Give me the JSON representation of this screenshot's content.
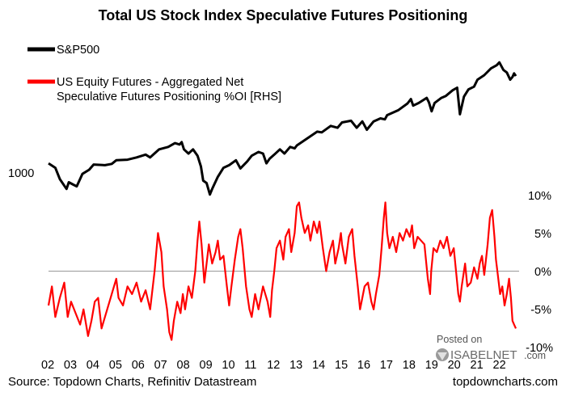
{
  "chart_data": {
    "type": "line",
    "title": "Total US Stock Index Speculative Futures Positioning",
    "x_tick_labels": [
      "02",
      "03",
      "04",
      "05",
      "06",
      "07",
      "08",
      "09",
      "10",
      "11",
      "12",
      "13",
      "14",
      "15",
      "16",
      "17",
      "18",
      "19",
      "20",
      "21",
      "22"
    ],
    "xlim": [
      2002.0,
      2022.7
    ],
    "left_axis": {
      "tick_labels": [
        "1000"
      ],
      "log_scale": true,
      "ylim": [
        650,
        5200
      ]
    },
    "right_axis": {
      "tick_labels": [
        "10%",
        "5%",
        "0%",
        "-5%",
        "-10%"
      ],
      "tick_values": [
        10,
        5,
        0,
        -5,
        -10
      ],
      "ylim": [
        -10,
        10
      ]
    },
    "zero_line": true,
    "grid": false,
    "legend_position": "top-left",
    "series": [
      {
        "name": "S&P500",
        "axis": "left",
        "color": "#000000",
        "points": [
          [
            2002.0,
            1150
          ],
          [
            2002.3,
            1080
          ],
          [
            2002.5,
            920
          ],
          [
            2002.8,
            800
          ],
          [
            2002.9,
            880
          ],
          [
            2003.1,
            850
          ],
          [
            2003.25,
            830
          ],
          [
            2003.5,
            990
          ],
          [
            2003.8,
            1050
          ],
          [
            2004.0,
            1130
          ],
          [
            2004.5,
            1120
          ],
          [
            2004.8,
            1140
          ],
          [
            2005.0,
            1200
          ],
          [
            2005.5,
            1210
          ],
          [
            2005.9,
            1250
          ],
          [
            2006.3,
            1300
          ],
          [
            2006.5,
            1250
          ],
          [
            2006.9,
            1400
          ],
          [
            2007.3,
            1450
          ],
          [
            2007.6,
            1530
          ],
          [
            2007.8,
            1500
          ],
          [
            2007.9,
            1550
          ],
          [
            2008.0,
            1400
          ],
          [
            2008.2,
            1320
          ],
          [
            2008.4,
            1400
          ],
          [
            2008.6,
            1280
          ],
          [
            2008.75,
            1100
          ],
          [
            2008.85,
            900
          ],
          [
            2009.0,
            870
          ],
          [
            2009.15,
            740
          ],
          [
            2009.25,
            800
          ],
          [
            2009.5,
            950
          ],
          [
            2009.75,
            1080
          ],
          [
            2010.0,
            1120
          ],
          [
            2010.3,
            1200
          ],
          [
            2010.5,
            1070
          ],
          [
            2010.8,
            1180
          ],
          [
            2011.0,
            1280
          ],
          [
            2011.3,
            1350
          ],
          [
            2011.5,
            1320
          ],
          [
            2011.65,
            1150
          ],
          [
            2011.8,
            1230
          ],
          [
            2012.0,
            1300
          ],
          [
            2012.25,
            1400
          ],
          [
            2012.45,
            1320
          ],
          [
            2012.7,
            1450
          ],
          [
            2012.9,
            1420
          ],
          [
            2013.0,
            1480
          ],
          [
            2013.5,
            1650
          ],
          [
            2013.9,
            1800
          ],
          [
            2014.1,
            1780
          ],
          [
            2014.5,
            1950
          ],
          [
            2014.8,
            1900
          ],
          [
            2015.0,
            2050
          ],
          [
            2015.4,
            2100
          ],
          [
            2015.65,
            1900
          ],
          [
            2015.9,
            2080
          ],
          [
            2016.1,
            1850
          ],
          [
            2016.4,
            2080
          ],
          [
            2016.7,
            2170
          ],
          [
            2016.9,
            2140
          ],
          [
            2017.0,
            2270
          ],
          [
            2017.5,
            2440
          ],
          [
            2017.9,
            2680
          ],
          [
            2018.05,
            2850
          ],
          [
            2018.15,
            2600
          ],
          [
            2018.4,
            2700
          ],
          [
            2018.75,
            2900
          ],
          [
            2018.85,
            2720
          ],
          [
            2018.97,
            2400
          ],
          [
            2019.1,
            2700
          ],
          [
            2019.4,
            2900
          ],
          [
            2019.6,
            2980
          ],
          [
            2019.9,
            3230
          ],
          [
            2020.1,
            3350
          ],
          [
            2020.22,
            2300
          ],
          [
            2020.4,
            2950
          ],
          [
            2020.6,
            3270
          ],
          [
            2020.85,
            3400
          ],
          [
            2021.0,
            3750
          ],
          [
            2021.3,
            4000
          ],
          [
            2021.6,
            4400
          ],
          [
            2021.85,
            4600
          ],
          [
            2021.97,
            4790
          ],
          [
            2022.15,
            4300
          ],
          [
            2022.3,
            4150
          ],
          [
            2022.45,
            3750
          ],
          [
            2022.55,
            3900
          ],
          [
            2022.62,
            4100
          ],
          [
            2022.7,
            3950
          ]
        ]
      },
      {
        "name": "US Equity Futures - Aggregated Net Speculative Futures Positioning %OI [RHS]",
        "axis": "right",
        "color": "#ff0000",
        "points": [
          [
            2002.0,
            -4.5
          ],
          [
            2002.15,
            -2.0
          ],
          [
            2002.3,
            -6.0
          ],
          [
            2002.5,
            -3.5
          ],
          [
            2002.7,
            -1.5
          ],
          [
            2002.85,
            -6.0
          ],
          [
            2003.0,
            -4.0
          ],
          [
            2003.2,
            -5.5
          ],
          [
            2003.4,
            -7.0
          ],
          [
            2003.55,
            -5.0
          ],
          [
            2003.75,
            -8.5
          ],
          [
            2003.9,
            -6.5
          ],
          [
            2004.05,
            -4.0
          ],
          [
            2004.2,
            -3.5
          ],
          [
            2004.35,
            -7.5
          ],
          [
            2004.5,
            -6.0
          ],
          [
            2004.7,
            -4.0
          ],
          [
            2004.85,
            -2.5
          ],
          [
            2005.0,
            -1.0
          ],
          [
            2005.1,
            -3.5
          ],
          [
            2005.3,
            -4.5
          ],
          [
            2005.5,
            -2.0
          ],
          [
            2005.7,
            -3.0
          ],
          [
            2005.9,
            -1.5
          ],
          [
            2006.1,
            -4.0
          ],
          [
            2006.3,
            -2.5
          ],
          [
            2006.5,
            -5.0
          ],
          [
            2006.7,
            0.0
          ],
          [
            2006.85,
            5.0
          ],
          [
            2007.0,
            2.5
          ],
          [
            2007.1,
            -2.0
          ],
          [
            2007.25,
            -5.0
          ],
          [
            2007.35,
            -8.0
          ],
          [
            2007.45,
            -9.0
          ],
          [
            2007.55,
            -6.5
          ],
          [
            2007.7,
            -4.0
          ],
          [
            2007.85,
            -5.5
          ],
          [
            2007.95,
            -3.0
          ],
          [
            2008.05,
            -5.0
          ],
          [
            2008.2,
            -2.0
          ],
          [
            2008.35,
            -3.5
          ],
          [
            2008.5,
            0.0
          ],
          [
            2008.6,
            4.0
          ],
          [
            2008.68,
            6.5
          ],
          [
            2008.78,
            3.5
          ],
          [
            2008.9,
            -1.5
          ],
          [
            2009.0,
            1.0
          ],
          [
            2009.1,
            3.5
          ],
          [
            2009.25,
            1.0
          ],
          [
            2009.4,
            2.5
          ],
          [
            2009.5,
            4.0
          ],
          [
            2009.6,
            1.5
          ],
          [
            2009.75,
            2.0
          ],
          [
            2009.9,
            -2.0
          ],
          [
            2010.0,
            -4.5
          ],
          [
            2010.1,
            -2.0
          ],
          [
            2010.25,
            1.5
          ],
          [
            2010.4,
            4.5
          ],
          [
            2010.5,
            5.5
          ],
          [
            2010.6,
            3.0
          ],
          [
            2010.75,
            -2.0
          ],
          [
            2010.9,
            -5.0
          ],
          [
            2011.0,
            -6.0
          ],
          [
            2011.15,
            -3.0
          ],
          [
            2011.3,
            -5.0
          ],
          [
            2011.5,
            -2.0
          ],
          [
            2011.7,
            -4.0
          ],
          [
            2011.82,
            -6.0
          ],
          [
            2011.9,
            -2.5
          ],
          [
            2012.0,
            0.0
          ],
          [
            2012.1,
            3.0
          ],
          [
            2012.25,
            4.0
          ],
          [
            2012.4,
            1.5
          ],
          [
            2012.5,
            4.5
          ],
          [
            2012.65,
            5.5
          ],
          [
            2012.75,
            2.5
          ],
          [
            2012.9,
            5.0
          ],
          [
            2013.0,
            8.5
          ],
          [
            2013.1,
            9.0
          ],
          [
            2013.2,
            7.0
          ],
          [
            2013.35,
            5.0
          ],
          [
            2013.5,
            6.0
          ],
          [
            2013.6,
            4.0
          ],
          [
            2013.75,
            6.5
          ],
          [
            2013.9,
            5.0
          ],
          [
            2014.0,
            6.5
          ],
          [
            2014.15,
            3.0
          ],
          [
            2014.3,
            0.0
          ],
          [
            2014.45,
            2.5
          ],
          [
            2014.6,
            4.0
          ],
          [
            2014.7,
            1.0
          ],
          [
            2014.85,
            3.0
          ],
          [
            2014.95,
            5.0
          ],
          [
            2015.0,
            3.5
          ],
          [
            2015.15,
            1.0
          ],
          [
            2015.3,
            4.5
          ],
          [
            2015.45,
            5.5
          ],
          [
            2015.55,
            2.0
          ],
          [
            2015.7,
            -2.0
          ],
          [
            2015.8,
            -5.0
          ],
          [
            2015.9,
            -3.5
          ],
          [
            2016.0,
            -2.0
          ],
          [
            2016.15,
            -1.5
          ],
          [
            2016.3,
            -4.0
          ],
          [
            2016.4,
            -5.0
          ],
          [
            2016.5,
            -3.0
          ],
          [
            2016.65,
            -0.5
          ],
          [
            2016.75,
            3.0
          ],
          [
            2016.85,
            7.0
          ],
          [
            2016.92,
            9.0
          ],
          [
            2017.0,
            5.0
          ],
          [
            2017.1,
            3.0
          ],
          [
            2017.25,
            4.5
          ],
          [
            2017.4,
            2.5
          ],
          [
            2017.55,
            5.0
          ],
          [
            2017.7,
            4.0
          ],
          [
            2017.85,
            5.5
          ],
          [
            2018.0,
            4.5
          ],
          [
            2018.1,
            6.0
          ],
          [
            2018.2,
            3.0
          ],
          [
            2018.35,
            4.5
          ],
          [
            2018.5,
            4.0
          ],
          [
            2018.65,
            3.5
          ],
          [
            2018.8,
            -1.0
          ],
          [
            2018.9,
            -3.0
          ],
          [
            2018.95,
            0.0
          ],
          [
            2019.05,
            3.0
          ],
          [
            2019.2,
            2.5
          ],
          [
            2019.35,
            4.0
          ],
          [
            2019.5,
            3.0
          ],
          [
            2019.65,
            4.5
          ],
          [
            2019.8,
            2.0
          ],
          [
            2019.95,
            3.0
          ],
          [
            2020.05,
            0.0
          ],
          [
            2020.15,
            -3.0
          ],
          [
            2020.22,
            -4.0
          ],
          [
            2020.3,
            -2.0
          ],
          [
            2020.45,
            1.0
          ],
          [
            2020.55,
            -2.0
          ],
          [
            2020.7,
            -1.5
          ],
          [
            2020.85,
            0.5
          ],
          [
            2021.0,
            -1.0
          ],
          [
            2021.1,
            1.0
          ],
          [
            2021.2,
            2.0
          ],
          [
            2021.3,
            -0.5
          ],
          [
            2021.45,
            3.5
          ],
          [
            2021.55,
            7.0
          ],
          [
            2021.65,
            8.0
          ],
          [
            2021.75,
            4.5
          ],
          [
            2021.82,
            1.5
          ],
          [
            2021.9,
            -0.5
          ],
          [
            2022.0,
            -3.0
          ],
          [
            2022.1,
            -2.0
          ],
          [
            2022.2,
            -4.5
          ],
          [
            2022.3,
            -3.0
          ],
          [
            2022.4,
            -1.0
          ],
          [
            2022.48,
            -3.5
          ],
          [
            2022.55,
            -6.5
          ],
          [
            2022.62,
            -7.0
          ],
          [
            2022.7,
            -7.5
          ]
        ]
      }
    ],
    "source": "Source: Topdown Charts, Refinitiv Datastream"
  },
  "watermark": {
    "posted_on": "Posted on",
    "brand": "ISABELNET",
    "brand_suffix": ".com"
  },
  "footer": {
    "source": "Source: Topdown Charts, Refinitiv Datastream",
    "site": "topdowncharts.com"
  },
  "legend": {
    "sp500": "S&P500",
    "futures_line1": "US Equity Futures - Aggregated Net",
    "futures_line2": "Speculative Futures Positioning %OI [RHS]"
  }
}
